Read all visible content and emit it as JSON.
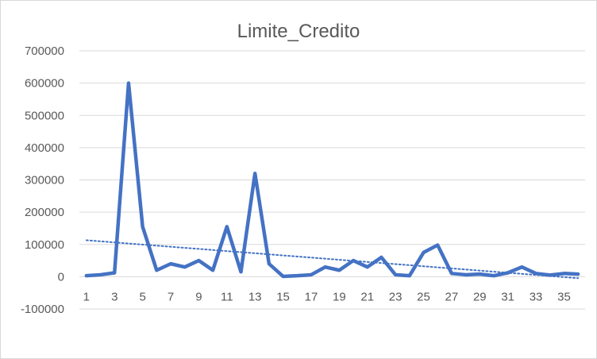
{
  "chart_data": {
    "type": "line",
    "title": "Limite_Credito",
    "xlabel": "",
    "ylabel": "",
    "ylim": [
      -100000,
      700000
    ],
    "yticks": [
      700000,
      600000,
      500000,
      400000,
      300000,
      200000,
      100000,
      0,
      -100000
    ],
    "xtick_labels": [
      1,
      3,
      5,
      7,
      9,
      11,
      13,
      15,
      17,
      19,
      21,
      23,
      25,
      27,
      29,
      31,
      33,
      35
    ],
    "grid": true,
    "legend": "none",
    "series": [
      {
        "values": [
          3000,
          6000,
          12000,
          600000,
          155000,
          20000,
          40000,
          30000,
          50000,
          20000,
          155000,
          15000,
          320000,
          40000,
          1000,
          3000,
          6000,
          30000,
          20000,
          50000,
          30000,
          60000,
          6000,
          3000,
          75000,
          98000,
          10000,
          6000,
          8000,
          3000,
          12000,
          30000,
          10000,
          5000,
          10000,
          8000
        ],
        "color": "#4472c4"
      }
    ],
    "trendline": {
      "type": "linear",
      "color": "#4472c4",
      "style": "dotted"
    }
  }
}
